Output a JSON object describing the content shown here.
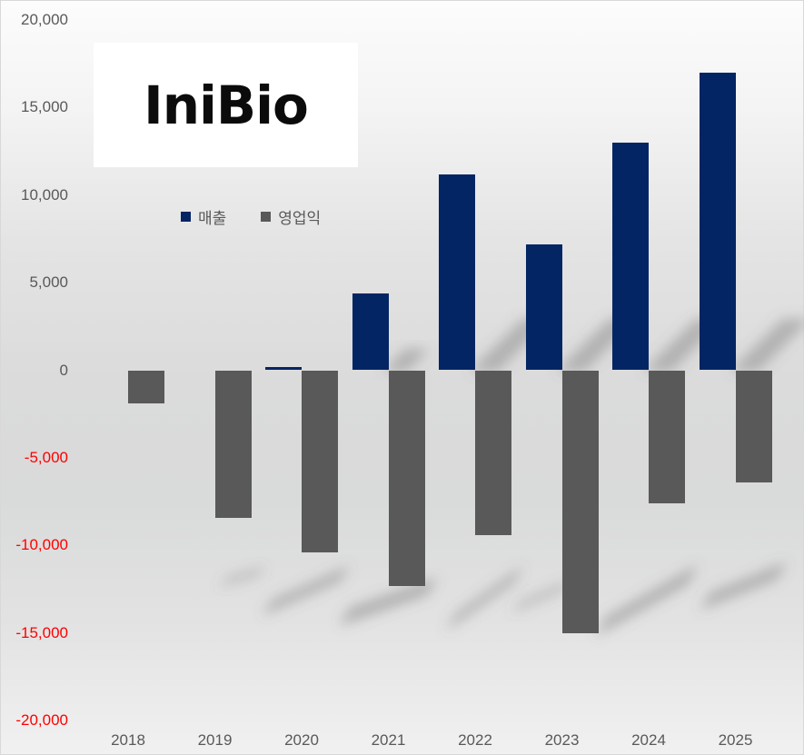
{
  "page": {
    "logo_text": "IniBio"
  },
  "chart_data": {
    "type": "bar",
    "title": "",
    "xlabel": "",
    "ylabel": "",
    "categories": [
      "2018",
      "2019",
      "2020",
      "2021",
      "2022",
      "2023",
      "2024",
      "2025"
    ],
    "series": [
      {
        "name": "매출",
        "key": "revenue",
        "color": "#032563",
        "values": [
          0,
          0,
          200,
          4400,
          11200,
          7200,
          13000,
          17000
        ]
      },
      {
        "name": "영업익",
        "key": "profit",
        "color": "#595959",
        "values": [
          -1900,
          -8400,
          -10400,
          -12300,
          -9400,
          -15000,
          -7600,
          -6400
        ]
      }
    ],
    "ylim": [
      -20000,
      20000
    ],
    "y_tick_step": 5000,
    "y_ticks": [
      {
        "v": 20000,
        "label": "20,000"
      },
      {
        "v": 15000,
        "label": "15,000"
      },
      {
        "v": 10000,
        "label": "10,000"
      },
      {
        "v": 5000,
        "label": "5,000"
      },
      {
        "v": 0,
        "label": "0"
      },
      {
        "v": -5000,
        "label": "-5,000"
      },
      {
        "v": -10000,
        "label": "-10,000"
      },
      {
        "v": -15000,
        "label": "-15,000"
      },
      {
        "v": -20000,
        "label": "-20,000"
      }
    ],
    "grid": false,
    "legend_position": "inside-upper-left",
    "tick_color": "#595959",
    "negative_tick_color": "#FF0000",
    "bar_shadow_effect": "perspective-diagonal-upper-right"
  }
}
